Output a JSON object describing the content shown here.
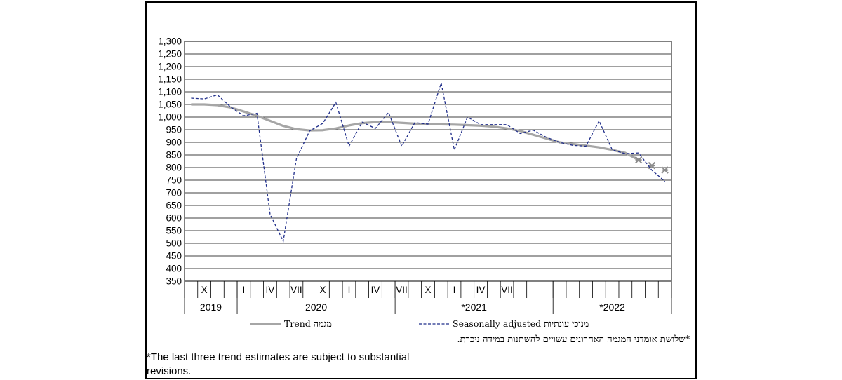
{
  "chart_data": {
    "type": "line",
    "title": "",
    "xlabel": "",
    "ylabel": "",
    "ylim": [
      350,
      1300
    ],
    "yticks": [
      350,
      400,
      450,
      500,
      550,
      600,
      650,
      700,
      750,
      800,
      850,
      900,
      950,
      1000,
      1050,
      1100,
      1150,
      1200,
      1250,
      1300
    ],
    "yticks_labels": [
      "350",
      "400",
      "450",
      "500",
      "550",
      "600",
      "650",
      "700",
      "750",
      "800",
      "850",
      "900",
      "950",
      "1,000",
      "1,050",
      "1,100",
      "1,150",
      "1,200",
      "1,250",
      "1,300"
    ],
    "months_count": 37,
    "month_labels": [
      {
        "index": 1,
        "label": "X"
      },
      {
        "index": 4,
        "label": "I"
      },
      {
        "index": 6,
        "label": "IV"
      },
      {
        "index": 8,
        "label": "VII"
      },
      {
        "index": 10,
        "label": "X"
      },
      {
        "index": 12,
        "label": "I"
      },
      {
        "index": 14,
        "label": "IV"
      },
      {
        "index": 16,
        "label": "VII"
      },
      {
        "index": 18,
        "label": "X"
      },
      {
        "index": 20,
        "label": "I"
      },
      {
        "index": 22,
        "label": "IV"
      },
      {
        "index": 24,
        "label": "VII"
      }
    ],
    "year_labels": [
      {
        "label": "2019",
        "start": 0,
        "end": 3
      },
      {
        "label": "2020",
        "start": 4,
        "end": 15
      },
      {
        "label": "*2021",
        "start": 16,
        "end": 27
      },
      {
        "label": "*2022",
        "start": 28,
        "end": 36
      }
    ],
    "series": [
      {
        "name": "Trend מגמה",
        "color": "#a6a6a6",
        "style": "solid",
        "values": [
          1050,
          1050,
          1047,
          1038,
          1022,
          1005,
          985,
          965,
          952,
          947,
          948,
          955,
          967,
          976,
          980,
          980,
          977,
          974,
          972,
          971,
          970,
          968,
          966,
          962,
          955,
          945,
          930,
          915,
          900,
          893,
          887,
          880,
          870,
          858,
          830,
          808,
          790
        ]
      },
      {
        "name": "Seasonally adjusted מנוכי עונתיות",
        "color": "#1f2d8a",
        "style": "dashed",
        "values": [
          1075,
          1072,
          1088,
          1040,
          1005,
          1015,
          615,
          508,
          835,
          945,
          975,
          1058,
          885,
          980,
          955,
          1018,
          885,
          978,
          972,
          1135,
          870,
          1000,
          970,
          970,
          970,
          935,
          948,
          920,
          900,
          888,
          885,
          985,
          870,
          855,
          858,
          790,
          745
        ]
      }
    ],
    "highlighted_trend_indices": [
      34,
      35,
      36
    ],
    "legend": "bottom",
    "grid": true
  },
  "legend": {
    "trend_en": "Trend",
    "trend_he": "מגמה",
    "sa_en": "Seasonally adjusted",
    "sa_he": "מנוכי עונתיות"
  },
  "notes": {
    "hebrew": "*שלושת אומדני המגמה האחרונים עשויים להשתנות במידה ניכרת.",
    "english": "*The last three trend estimates are subject to substantial revisions."
  }
}
